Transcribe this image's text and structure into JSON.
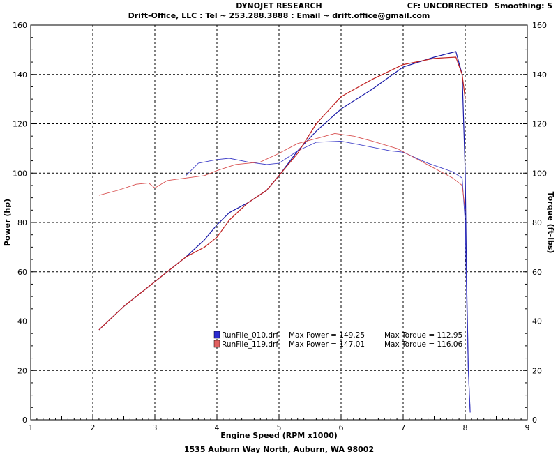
{
  "header": {
    "title": "DYNOJET RESEARCH",
    "subtitle": "Drift-Office, LLC : Tel ~ 253.288.3888 : Email ~ drift.office@gmail.com",
    "cf_label": "CF: UNCORRECTED",
    "smoothing_label": "Smoothing: 5"
  },
  "footer": {
    "address": "1535 Auburn Way North, Auburn, WA 98002"
  },
  "chart_data": {
    "type": "line",
    "title": "DYNOJET RESEARCH",
    "xlabel": "Engine Speed (RPM x1000)",
    "ylabel": "Power (hp)",
    "y2label": "Torque (ft-lbs)",
    "xlim": [
      1,
      9
    ],
    "ylim": [
      0,
      160
    ],
    "y2lim": [
      0,
      160
    ],
    "xticks": [
      "1",
      "2",
      "3",
      "4",
      "5",
      "6",
      "7",
      "8",
      "9"
    ],
    "yticks": [
      "0",
      "20",
      "40",
      "60",
      "80",
      "100",
      "120",
      "140",
      "160"
    ],
    "grid": true,
    "legend_placement": "center-bottom",
    "series": [
      {
        "name": "RunFile_010.drf",
        "measure": "power",
        "color": "#1a1aa8",
        "max_label": "Max Power = 149.25",
        "x": [
          2.1,
          2.5,
          3.0,
          3.5,
          3.8,
          4.0,
          4.2,
          4.5,
          4.8,
          5.0,
          5.3,
          5.6,
          6.0,
          6.5,
          7.0,
          7.5,
          7.85,
          7.95,
          8.0,
          8.02,
          8.05,
          8.08
        ],
        "values": [
          36.5,
          46,
          56,
          66,
          73,
          79,
          84,
          88,
          93,
          99,
          109,
          117,
          126,
          134,
          143,
          147,
          149.25,
          140,
          100,
          60,
          20,
          3
        ]
      },
      {
        "name": "RunFile_010.drf",
        "measure": "torque",
        "color": "#4040c8",
        "max_label": "Max Torque = 112.95",
        "x": [
          3.5,
          3.7,
          4.0,
          4.2,
          4.5,
          4.8,
          5.0,
          5.3,
          5.6,
          6.0,
          6.4,
          6.8,
          7.0,
          7.4,
          7.8,
          7.95,
          8.0,
          8.02,
          8.05,
          8.08
        ],
        "values": [
          99,
          104,
          105.5,
          106,
          104.5,
          103.5,
          104,
          109,
          112.5,
          112.95,
          111,
          109,
          108.5,
          104,
          100.5,
          98,
          80,
          50,
          20,
          3
        ]
      },
      {
        "name": "RunFile_119.drf",
        "measure": "power",
        "color": "#c02020",
        "max_label": "Max Power = 147.01",
        "x": [
          2.1,
          2.5,
          3.0,
          3.5,
          3.8,
          4.0,
          4.2,
          4.5,
          4.8,
          5.0,
          5.3,
          5.6,
          6.0,
          6.5,
          7.0,
          7.5,
          7.85,
          7.95,
          8.0
        ],
        "values": [
          36.5,
          46,
          56,
          66,
          70,
          74,
          81,
          88,
          93,
          99,
          108,
          120,
          131,
          138,
          144,
          146.5,
          147.01,
          140,
          130
        ]
      },
      {
        "name": "RunFile_119.drf",
        "measure": "torque",
        "color": "#d85050",
        "max_label": "Max Torque = 116.06",
        "x": [
          2.1,
          2.4,
          2.7,
          2.9,
          3.0,
          3.2,
          3.5,
          3.8,
          4.0,
          4.3,
          4.7,
          5.0,
          5.3,
          5.6,
          5.9,
          6.2,
          6.5,
          6.9,
          7.2,
          7.5,
          7.8,
          7.95,
          8.0
        ],
        "values": [
          91,
          93,
          95.5,
          96,
          94,
          97,
          98,
          99,
          101,
          103.5,
          104.5,
          108,
          112,
          114,
          116.06,
          115,
          113,
          110,
          106,
          102,
          98,
          95,
          85
        ]
      }
    ]
  }
}
